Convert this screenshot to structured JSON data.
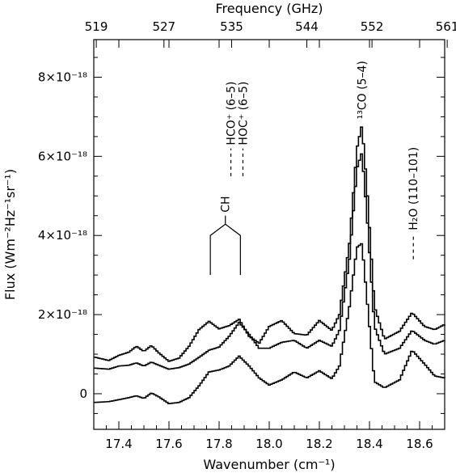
{
  "chart_data": {
    "type": "line",
    "xlabel": "Wavenumber (cm⁻¹)",
    "x2label": "Frequency (GHz)",
    "ylabel": "Flux (Wm⁻²Hz⁻¹sr⁻¹)",
    "xlim": [
      17.3,
      18.7
    ],
    "ylim": [
      -9e-19,
      8.95e-18
    ],
    "x_ticks": [
      17.4,
      17.6,
      17.8,
      18.0,
      18.2,
      18.4,
      18.6
    ],
    "x_tick_labels": [
      "17.4",
      "17.6",
      "17.8",
      "18.0",
      "18.2",
      "18.4",
      "18.6"
    ],
    "x2_ticks": [
      17.31,
      17.58,
      17.85,
      18.15,
      18.41,
      18.71
    ],
    "x2_tick_labels": [
      "519",
      "527",
      "535",
      "544",
      "552",
      "561"
    ],
    "y_ticks": [
      0,
      2e-18,
      4e-18,
      6e-18,
      8e-18
    ],
    "y_tick_labels": [
      "0",
      "2×10⁻¹⁸",
      "4×10⁻¹⁸",
      "6×10⁻¹⁸",
      "8×10⁻¹⁸"
    ],
    "grid": false,
    "legend": "none",
    "line_style": "steps",
    "color": "#000000",
    "series": [
      {
        "x": [
          17.3,
          17.36,
          17.4,
          17.44,
          17.47,
          17.5,
          17.53,
          17.56,
          17.6,
          17.64,
          17.68,
          17.72,
          17.76,
          17.8,
          17.84,
          17.88,
          17.92,
          17.96,
          18.0,
          18.05,
          18.1,
          18.15,
          18.2,
          18.25,
          18.28,
          18.32,
          18.35,
          18.37,
          18.39,
          18.42,
          18.46,
          18.52,
          18.57,
          18.62,
          18.66,
          18.7
        ],
        "y": [
          9.3e-19,
          8.4e-19,
          9.7e-19,
          1.05e-18,
          1.2e-18,
          1.07e-18,
          1.22e-18,
          1.03e-18,
          8.2e-19,
          9e-19,
          1.2e-18,
          1.62e-18,
          1.83e-18,
          1.64e-18,
          1.72e-18,
          1.88e-18,
          1.45e-18,
          1.28e-18,
          1.7e-18,
          1.85e-18,
          1.52e-18,
          1.48e-18,
          1.85e-18,
          1.6e-18,
          2e-18,
          3.8e-18,
          6.2e-18,
          6.8e-18,
          5.2e-18,
          2.2e-18,
          1.38e-18,
          1.58e-18,
          2.05e-18,
          1.7e-18,
          1.62e-18,
          1.75e-18
        ]
      },
      {
        "x": [
          17.3,
          17.36,
          17.4,
          17.44,
          17.47,
          17.5,
          17.53,
          17.56,
          17.6,
          17.64,
          17.68,
          17.72,
          17.76,
          17.8,
          17.84,
          17.88,
          17.92,
          17.96,
          18.0,
          18.05,
          18.1,
          18.15,
          18.2,
          18.25,
          18.28,
          18.32,
          18.35,
          18.37,
          18.39,
          18.42,
          18.46,
          18.52,
          18.57,
          18.62,
          18.66,
          18.7
        ],
        "y": [
          6.5e-19,
          6.2e-19,
          7e-19,
          7.2e-19,
          7.8e-19,
          7e-19,
          8e-19,
          7.2e-19,
          6.2e-19,
          6.6e-19,
          7.5e-19,
          9.2e-19,
          1.1e-18,
          1.18e-18,
          1.45e-18,
          1.8e-18,
          1.5e-18,
          1.15e-18,
          1.15e-18,
          1.3e-18,
          1.35e-18,
          1.15e-18,
          1.35e-18,
          1.2e-18,
          1.6e-18,
          3.4e-18,
          5.7e-18,
          6.1e-18,
          4.5e-18,
          1.7e-18,
          1e-18,
          1.15e-18,
          1.6e-18,
          1.35e-18,
          1.25e-18,
          1.35e-18
        ]
      },
      {
        "x": [
          17.3,
          17.36,
          17.4,
          17.44,
          17.47,
          17.5,
          17.53,
          17.56,
          17.6,
          17.64,
          17.68,
          17.72,
          17.76,
          17.8,
          17.84,
          17.88,
          17.92,
          17.96,
          18.0,
          18.05,
          18.1,
          18.15,
          18.2,
          18.25,
          18.28,
          18.32,
          18.35,
          18.37,
          18.39,
          18.42,
          18.46,
          18.52,
          18.57,
          18.62,
          18.66,
          18.7
        ],
        "y": [
          -2.2e-19,
          -2e-19,
          -1.5e-19,
          -1e-19,
          -5e-20,
          -1.2e-19,
          2e-20,
          -8e-20,
          -2.5e-19,
          -2.2e-19,
          -1e-19,
          2e-19,
          5.5e-19,
          6e-19,
          7e-19,
          9.5e-19,
          7e-19,
          4e-19,
          2.2e-19,
          3.5e-19,
          5.5e-19,
          4e-19,
          5.8e-19,
          3.8e-19,
          7e-19,
          2.2e-18,
          3.7e-18,
          3.8e-18,
          2.4e-18,
          3e-19,
          1.5e-19,
          3.5e-19,
          1.1e-18,
          7.5e-19,
          4.5e-19,
          4e-19
        ]
      }
    ],
    "annotations": [
      {
        "text": "HCO⁺ (6–5)",
        "x": 17.847,
        "y_bottom": 5.5e-18,
        "y_top": 6.2e-18,
        "type": "dashed-marker"
      },
      {
        "text": "HOC⁺ (6–5)",
        "x": 17.895,
        "y_bottom": 5.5e-18,
        "y_top": 6.2e-18,
        "type": "dashed-marker"
      },
      {
        "text": "¹³CO (5–4)",
        "x": 18.37,
        "y_bottom": 6.9e-18,
        "type": "label"
      },
      {
        "text": "H₂O (110–101)",
        "x": 18.575,
        "y_bottom": 3.4e-18,
        "y_top": 4.05e-18,
        "type": "dashed-marker"
      },
      {
        "text": "CH",
        "x_left": 17.765,
        "x_right": 17.885,
        "x_center": 17.825,
        "y_bottom": 3e-18,
        "y_shoulder": 4e-18,
        "y_top": 4.5e-18,
        "type": "bracket"
      }
    ]
  }
}
